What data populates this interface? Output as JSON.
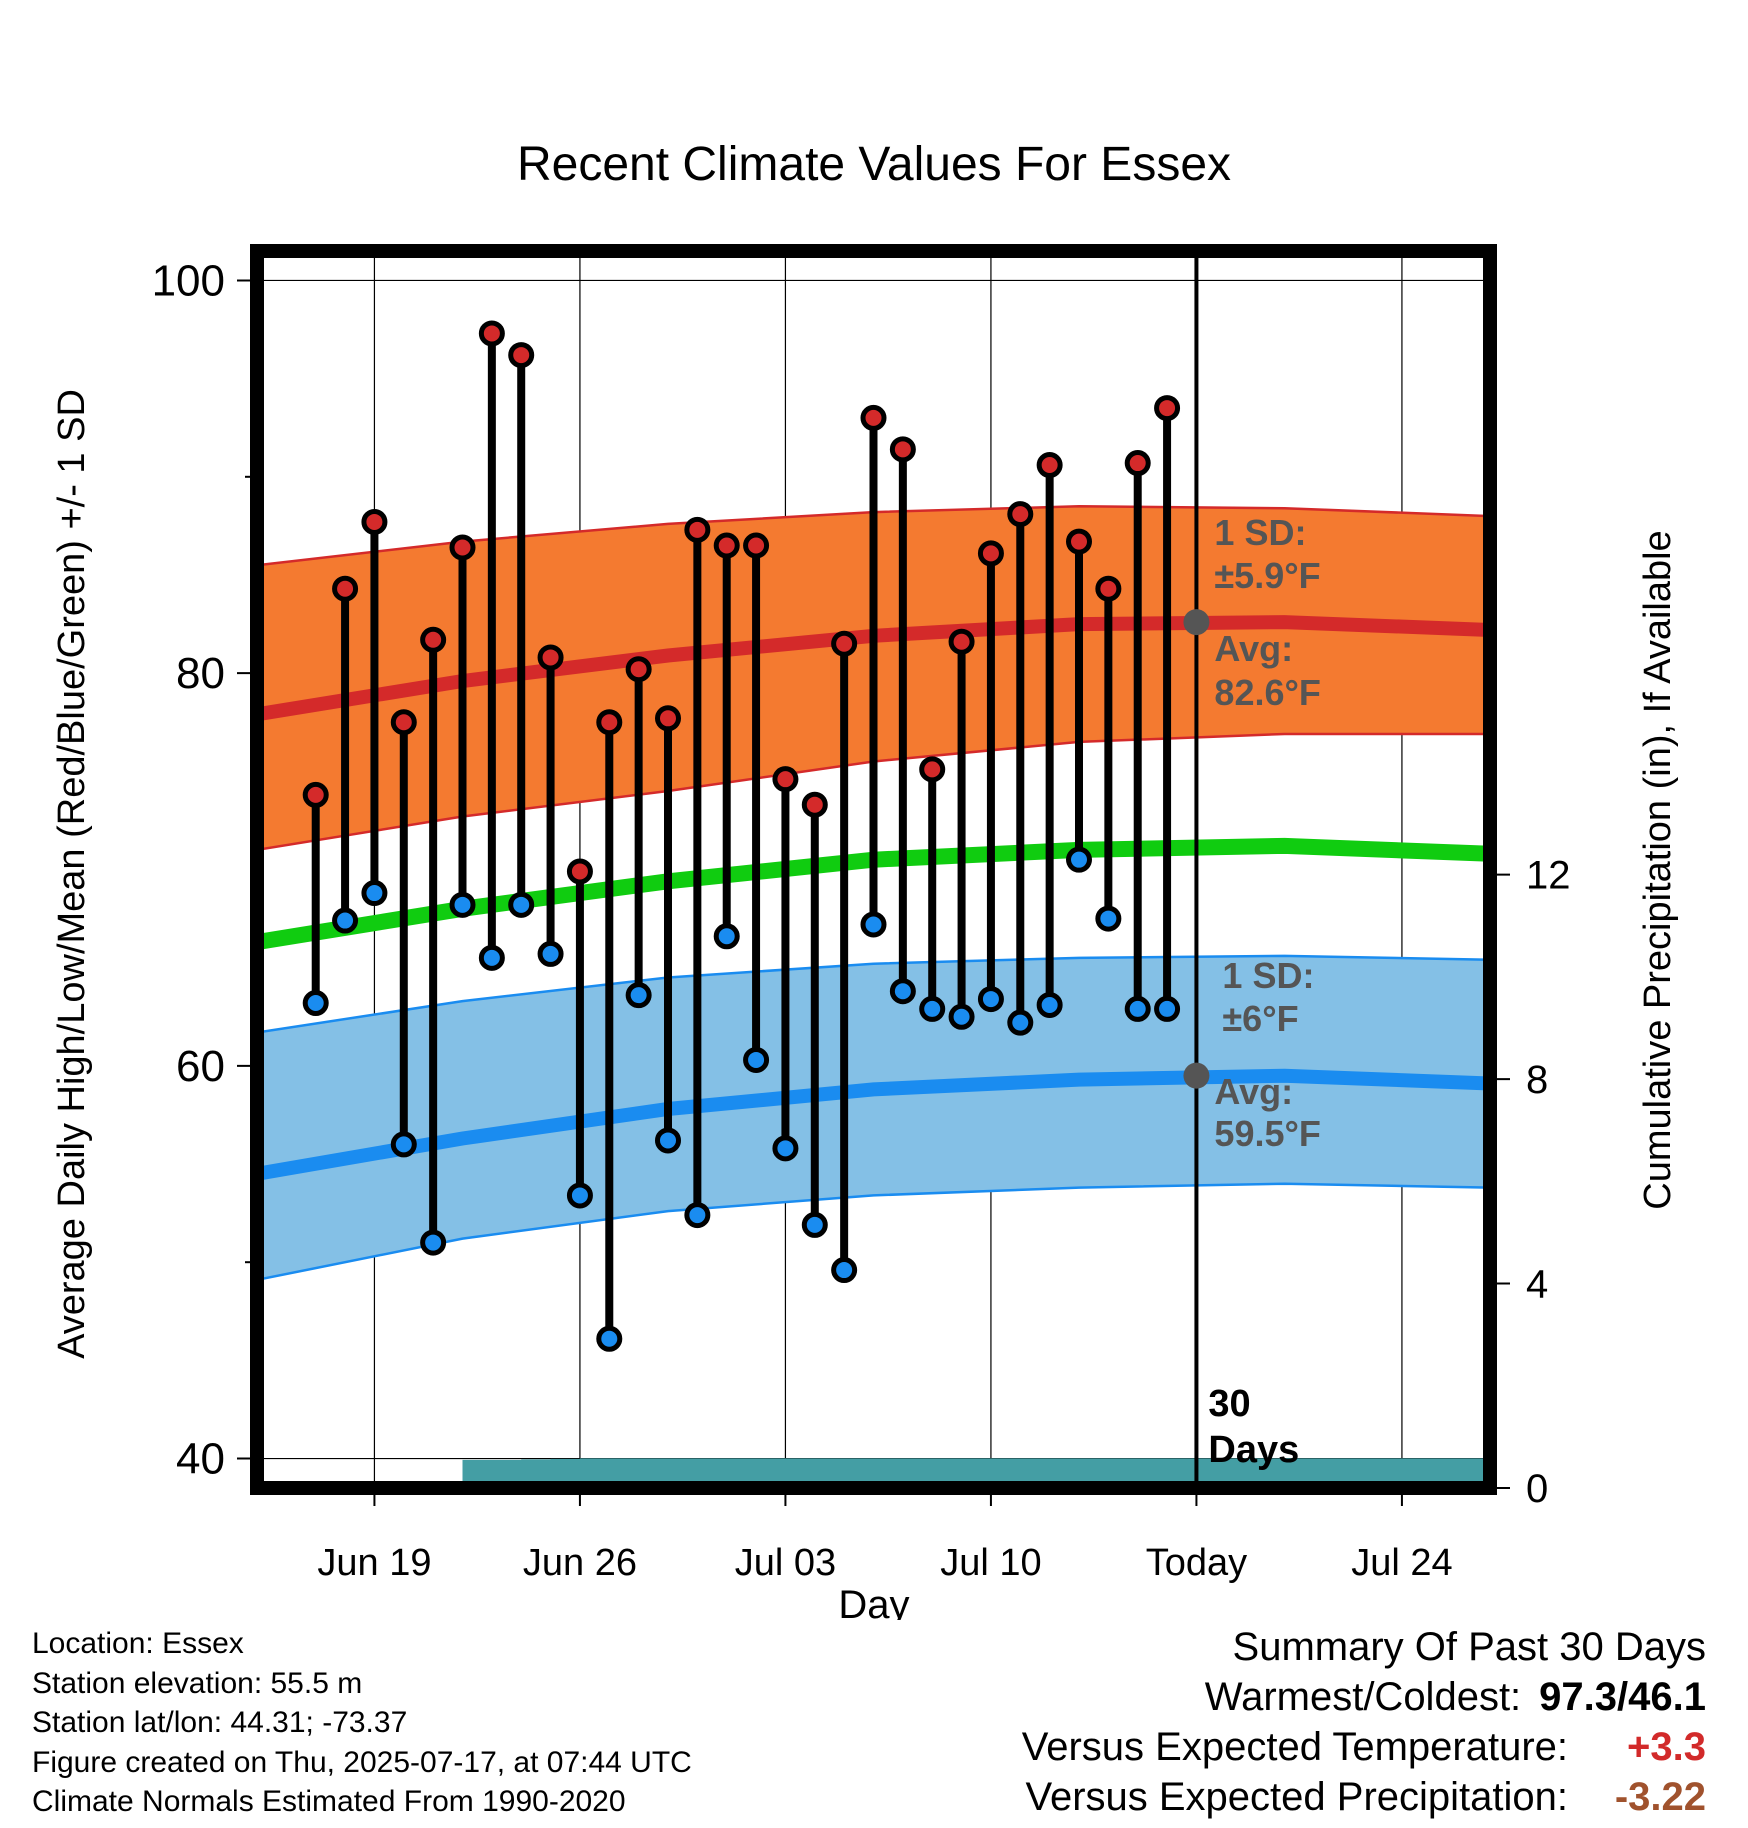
{
  "chart_data": {
    "type": "line",
    "title": "Recent Climate Values For Essex",
    "xlabel": "Day",
    "ylabel": "Average Daily High/Low/Mean (Red/Blue/Green) +/- 1 SD",
    "y2label": "Cumulative Precipitation (in), If Available",
    "ylim": [
      38.5,
      101.5
    ],
    "y2lim": [
      0,
      24.2
    ],
    "xlim": [
      "2025-06-15",
      "2025-07-27"
    ],
    "yticks": [
      40,
      60,
      80,
      100
    ],
    "y2ticks": [
      0,
      4,
      8,
      12
    ],
    "x_tick_labels": [
      {
        "date": "2025-06-19",
        "label": "Jun 19"
      },
      {
        "date": "2025-06-26",
        "label": "Jun 26"
      },
      {
        "date": "2025-07-03",
        "label": "Jul 03"
      },
      {
        "date": "2025-07-10",
        "label": "Jul 10"
      },
      {
        "date": "2025-07-17",
        "label": "Today"
      },
      {
        "date": "2025-07-24",
        "label": "Jul 24"
      }
    ],
    "grid": true,
    "today": "2025-07-17",
    "today_label": "30\nDays",
    "normals_dates": [
      "2025-06-15",
      "2025-06-22",
      "2025-06-29",
      "2025-07-06",
      "2025-07-13",
      "2025-07-20",
      "2025-07-27"
    ],
    "normal_high": [
      77.9,
      79.6,
      80.9,
      81.9,
      82.5,
      82.6,
      82.2
    ],
    "normal_high_upper": [
      85.5,
      86.7,
      87.6,
      88.2,
      88.5,
      88.4,
      88.0
    ],
    "normal_high_lower": [
      71.0,
      72.7,
      74.0,
      75.5,
      76.5,
      76.9,
      76.9
    ],
    "normal_mean": [
      66.3,
      68.0,
      69.4,
      70.5,
      71.0,
      71.2,
      70.8
    ],
    "normal_low": [
      54.5,
      56.3,
      57.8,
      58.8,
      59.3,
      59.5,
      59.1
    ],
    "normal_low_upper": [
      61.7,
      63.3,
      64.5,
      65.2,
      65.5,
      65.6,
      65.4
    ],
    "normal_low_lower": [
      49.1,
      51.2,
      52.6,
      53.4,
      53.8,
      54.0,
      53.8
    ],
    "obs_dates": [
      "2025-06-17",
      "2025-06-18",
      "2025-06-19",
      "2025-06-20",
      "2025-06-21",
      "2025-06-22",
      "2025-06-23",
      "2025-06-24",
      "2025-06-25",
      "2025-06-26",
      "2025-06-27",
      "2025-06-28",
      "2025-06-29",
      "2025-06-30",
      "2025-07-01",
      "2025-07-02",
      "2025-07-03",
      "2025-07-04",
      "2025-07-05",
      "2025-07-06",
      "2025-07-07",
      "2025-07-08",
      "2025-07-09",
      "2025-07-10",
      "2025-07-11",
      "2025-07-12",
      "2025-07-13",
      "2025-07-14",
      "2025-07-15",
      "2025-07-16"
    ],
    "obs_high": [
      73.8,
      84.3,
      87.7,
      77.5,
      81.7,
      86.4,
      97.3,
      96.2,
      80.8,
      69.9,
      77.5,
      80.2,
      77.7,
      87.3,
      86.5,
      86.5,
      74.6,
      73.3,
      81.5,
      93.0,
      91.4,
      75.1,
      81.6,
      86.1,
      88.1,
      90.6,
      86.7,
      84.3,
      90.7,
      93.5
    ],
    "obs_low": [
      63.2,
      67.4,
      68.8,
      56.0,
      51.0,
      68.2,
      65.5,
      68.2,
      65.7,
      53.4,
      46.1,
      63.6,
      56.2,
      52.4,
      66.6,
      60.3,
      55.8,
      51.9,
      49.6,
      67.2,
      63.8,
      62.9,
      62.5,
      63.4,
      62.2,
      63.1,
      70.5,
      67.5,
      62.9,
      62.9
    ],
    "precip_dates": [
      "2025-06-17",
      "2025-06-18",
      "2025-06-19",
      "2025-06-20",
      "2025-06-21",
      "2025-06-22",
      "2025-06-23",
      "2025-06-24",
      "2025-06-25",
      "2025-06-26",
      "2025-06-27",
      "2025-06-28",
      "2025-06-29",
      "2025-06-30",
      "2025-07-01",
      "2025-07-02",
      "2025-07-03",
      "2025-07-04",
      "2025-07-05",
      "2025-07-06",
      "2025-07-07",
      "2025-07-08",
      "2025-07-09",
      "2025-07-10",
      "2025-07-11",
      "2025-07-12",
      "2025-07-13",
      "2025-07-14",
      "2025-07-15",
      "2025-07-16",
      "2025-07-17",
      "2025-07-27"
    ],
    "precip_cum": [
      0.0,
      0.0,
      0.0,
      0.0,
      0.0,
      0.55,
      0.55,
      0.56,
      0.57,
      0.58,
      0.58,
      0.58,
      0.58,
      0.58,
      0.58,
      0.58,
      0.58,
      0.58,
      0.58,
      0.58,
      0.58,
      0.58,
      0.58,
      0.58,
      0.58,
      0.58,
      0.58,
      0.58,
      0.58,
      0.58,
      0.58,
      0.58
    ],
    "annotations": [
      {
        "line1": "1 SD:",
        "line2": "±5.9°F"
      },
      {
        "line1": "Avg:",
        "line2": "82.6°F"
      },
      {
        "line1": "1 SD:",
        "line2": "±6°F"
      },
      {
        "line1": "Avg:",
        "line2": "59.5°F"
      }
    ]
  },
  "colors": {
    "high_band": "#f47a30",
    "high_line": "#d42a2a",
    "mean_line": "#10cc10",
    "low_band": "#84c0e6",
    "low_line": "#1a8cf0",
    "precip": "#449ea4",
    "annotation": "#555555",
    "summary_warm": "#d22a2a",
    "summary_dry": "#a0522d"
  },
  "info": {
    "location": "Location: Essex",
    "elevation": "Station elevation: 55.5 m",
    "latlon": "Station lat/lon: 44.31; -73.37",
    "created": "Figure created on Thu, 2025-07-17, at 07:44 UTC",
    "normals": "Climate Normals Estimated From 1990-2020"
  },
  "summary": {
    "title": "Summary Of Past 30 Days",
    "warm_cold_label": "Warmest/Coldest:",
    "warm_cold_value": "97.3/46.1",
    "temp_label": "Versus Expected Temperature:",
    "temp_value": "+3.3",
    "precip_label": "Versus Expected Precipitation:",
    "precip_value": "-3.22"
  }
}
